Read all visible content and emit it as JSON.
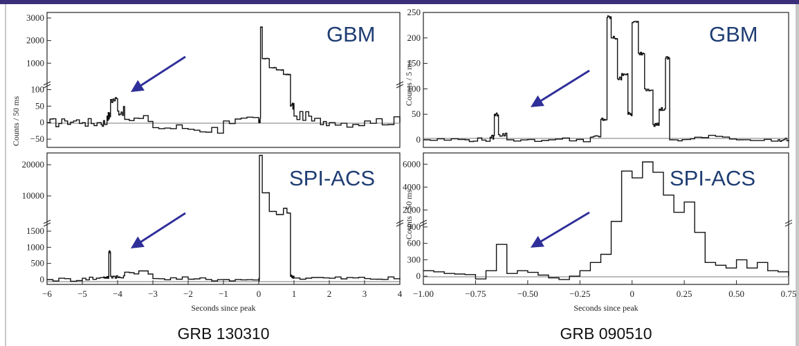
{
  "colors": {
    "frame": "#3b2f7a",
    "arrow": "#2f2f9a",
    "trace": "#111111",
    "label": "#1f3d73"
  },
  "captions": {
    "left": "GRB 130310",
    "right": "GRB 090510"
  },
  "chart_data": [
    {
      "type": "line",
      "id": "left-top",
      "detector": "GBM",
      "ylabel": "Counts / 50 ms",
      "xlabel": "",
      "xlim": [
        -6,
        4
      ],
      "ylim": [
        -75,
        3000
      ],
      "broken_axis": true,
      "yticks": [
        -50,
        0,
        50,
        100,
        1000,
        2000,
        3000
      ],
      "series": [
        {
          "x": [
            -6,
            -5.5,
            -5,
            -4.5,
            -4.3,
            -4.2,
            -4,
            -3.8,
            -3,
            -2,
            -1,
            0,
            0.05,
            0.1,
            0.3,
            0.5,
            0.7,
            0.9,
            1,
            1.5,
            2,
            3,
            4
          ],
          "y": [
            0,
            5,
            0,
            0,
            20,
            70,
            35,
            10,
            -15,
            -20,
            5,
            0,
            2600,
            1200,
            800,
            700,
            500,
            50,
            20,
            5,
            0,
            5,
            0
          ]
        }
      ]
    },
    {
      "type": "line",
      "id": "left-bottom",
      "detector": "SPI-ACS",
      "ylabel": "",
      "xlabel": "Seconds since peak",
      "xlim": [
        -6,
        4
      ],
      "ylim": [
        -150,
        22000
      ],
      "broken_axis": true,
      "yticks": [
        0,
        500,
        1000,
        1500,
        10000,
        20000
      ],
      "xticks": [
        -6,
        -5,
        -4,
        -3,
        -2,
        -1,
        0,
        1,
        2,
        3,
        4
      ],
      "series": [
        {
          "x": [
            -6,
            -5,
            -4.4,
            -4.25,
            -4.2,
            -4,
            -3.8,
            -3,
            -2,
            -1,
            0,
            0.02,
            0.1,
            0.3,
            0.5,
            0.7,
            0.8,
            0.9,
            1,
            2,
            3,
            4
          ],
          "y": [
            0,
            40,
            80,
            850,
            100,
            60,
            230,
            30,
            10,
            0,
            0,
            23000,
            11000,
            5000,
            4000,
            6000,
            4500,
            100,
            50,
            40,
            30,
            0
          ]
        }
      ]
    },
    {
      "type": "line",
      "id": "right-top",
      "detector": "GBM",
      "ylabel": "Counts / 5 ms",
      "xlabel": "",
      "xlim": [
        -1.0,
        0.75
      ],
      "ylim": [
        -15,
        250
      ],
      "yticks": [
        0,
        50,
        100,
        150,
        200,
        250
      ],
      "series": [
        {
          "x": [
            -1.0,
            -0.8,
            -0.68,
            -0.66,
            -0.64,
            -0.6,
            -0.4,
            -0.2,
            -0.15,
            -0.12,
            -0.1,
            -0.07,
            -0.05,
            -0.02,
            0,
            0.03,
            0.06,
            0.1,
            0.13,
            0.16,
            0.18,
            0.3,
            0.5,
            0.7,
            0.75
          ],
          "y": [
            0,
            0,
            5,
            50,
            10,
            0,
            0,
            5,
            40,
            240,
            200,
            120,
            130,
            50,
            230,
            170,
            100,
            30,
            60,
            160,
            0,
            5,
            0,
            0,
            0
          ]
        }
      ]
    },
    {
      "type": "line",
      "id": "right-bottom",
      "detector": "SPI-ACS",
      "ylabel": "Counts / 50 ms",
      "xlabel": "Seconds since peak",
      "xlim": [
        -1.0,
        0.75
      ],
      "ylim": [
        -150,
        6500
      ],
      "broken_axis": true,
      "yticks": [
        0,
        300,
        600,
        900,
        2000,
        4000,
        6000
      ],
      "xticks": [
        -1.0,
        -0.75,
        -0.5,
        -0.25,
        0,
        0.25,
        0.5,
        0.75
      ],
      "xticklabels": [
        "−1.00",
        "−0.75",
        "−0.50",
        "−0.25",
        "0",
        "0.25",
        "0.50",
        "0.75"
      ],
      "series": [
        {
          "x": [
            -1.0,
            -0.95,
            -0.9,
            -0.85,
            -0.8,
            -0.75,
            -0.7,
            -0.65,
            -0.6,
            -0.55,
            -0.5,
            -0.45,
            -0.4,
            -0.35,
            -0.3,
            -0.25,
            -0.2,
            -0.15,
            -0.1,
            -0.05,
            0,
            0.05,
            0.1,
            0.15,
            0.2,
            0.25,
            0.3,
            0.35,
            0.4,
            0.45,
            0.5,
            0.55,
            0.6,
            0.65,
            0.7,
            0.75
          ],
          "y": [
            100,
            80,
            50,
            40,
            30,
            -50,
            100,
            580,
            50,
            100,
            70,
            20,
            -30,
            -60,
            0,
            100,
            250,
            400,
            1000,
            5400,
            4800,
            6200,
            5300,
            3300,
            1800,
            2700,
            800,
            250,
            200,
            150,
            300,
            150,
            250,
            100,
            80,
            0
          ]
        }
      ]
    }
  ]
}
